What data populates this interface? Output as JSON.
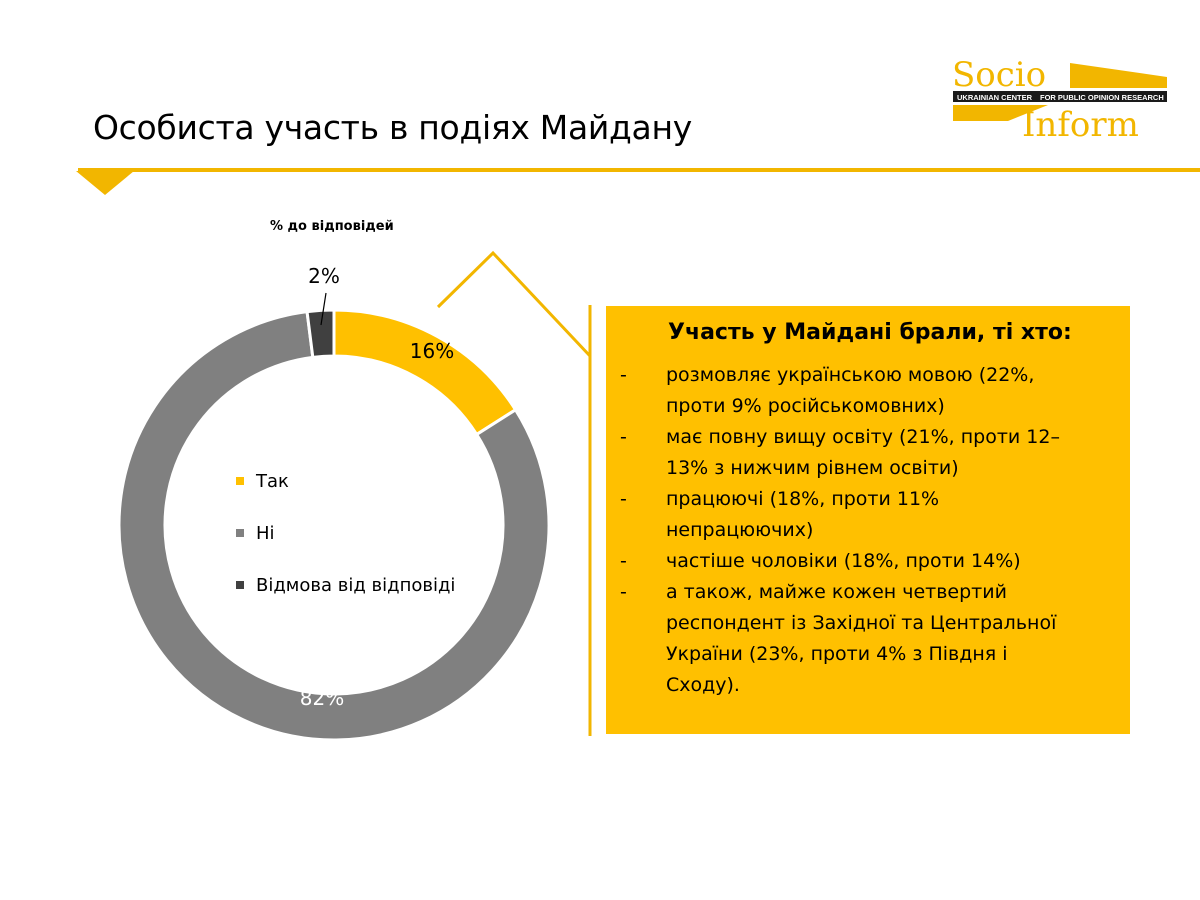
{
  "page": {
    "title": "Особиста участь в подіях Майдану",
    "unit_label": "% до відповідей"
  },
  "logo": {
    "word_top": "Socio",
    "word_bottom": "Inform",
    "band_left": "UKRAINIAN CENTER",
    "band_right": "FOR PUBLIC OPINION RESEARCH"
  },
  "chart_data": {
    "type": "pie",
    "subtype": "donut",
    "categories": [
      "Так",
      "Ні",
      "Відмова від відповіді"
    ],
    "values": [
      16,
      82,
      2
    ],
    "value_labels": [
      "16%",
      "82%",
      "2%"
    ],
    "colors": [
      "#ffc000",
      "#808080",
      "#404040"
    ],
    "legend_position": "inside-center-left"
  },
  "callout": {
    "title": "Участь у Майдані брали, ті хто:",
    "dash": "-",
    "items": [
      {
        "lines": [
          "розмовляє українською мовою (22%,",
          "проти 9% російськомовних)"
        ]
      },
      {
        "lines": [
          "має повну вищу освіту (21%, проти 12–",
          "13% з нижчим рівнем освіти)"
        ]
      },
      {
        "lines": [
          "працюючі (18%, проти 11%",
          "непрацюючих)"
        ]
      },
      {
        "lines": [
          "частіше чоловіки (18%, проти 14%)"
        ]
      },
      {
        "lines": [
          "а також, майже кожен четвертий",
          "респондент із Західної та Центральної",
          "України (23%, проти 4% з Півдня і",
          "Сходу)."
        ]
      }
    ]
  },
  "colors": {
    "accent": "#f2b600",
    "callout_bg": "#ffc000"
  }
}
